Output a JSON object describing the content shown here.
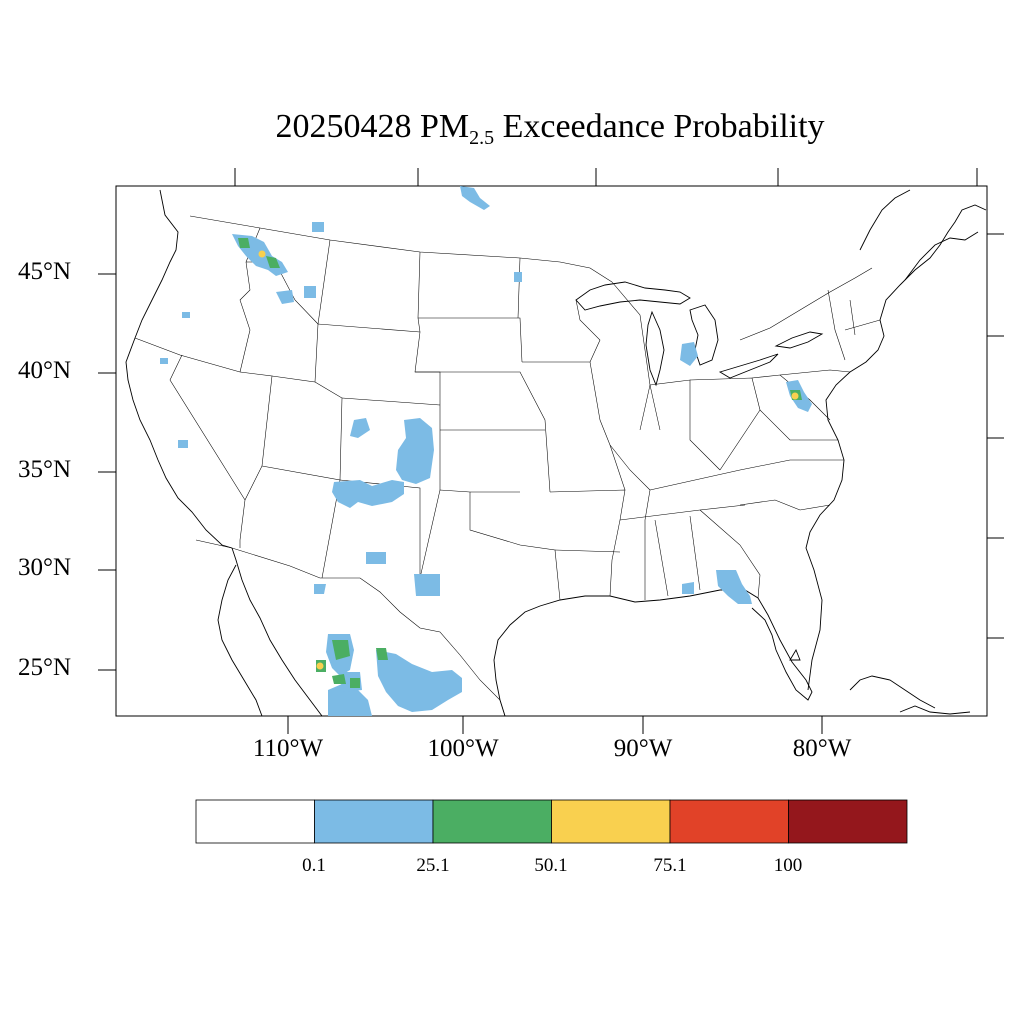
{
  "title": {
    "date": "20250428",
    "species": "PM",
    "subscript": "2.5",
    "suffix": "Exceedance Probability"
  },
  "axes": {
    "lat_labels": [
      "45°N",
      "40°N",
      "35°N",
      "30°N",
      "25°N"
    ],
    "lon_labels": [
      "110°W",
      "100°W",
      "90°W",
      "80°W"
    ]
  },
  "colorbar": {
    "colors": [
      "#ffffff",
      "#7cbbe5",
      "#4bae63",
      "#f9d04f",
      "#e14228",
      "#94171c"
    ],
    "labels": [
      "0.1",
      "25.1",
      "50.1",
      "75.1",
      "100"
    ]
  },
  "legend_colors": {
    "low": "#7cbbe5",
    "medium": "#4bae63",
    "high": "#f9d04f"
  }
}
